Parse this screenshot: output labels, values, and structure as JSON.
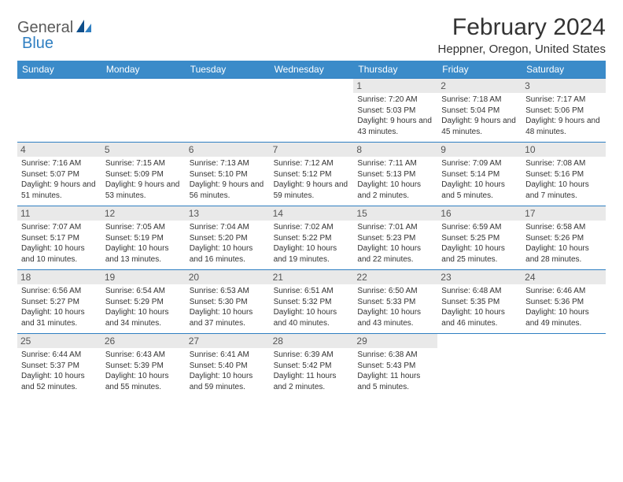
{
  "logo": {
    "part1": "General",
    "part2": "Blue"
  },
  "title": "February 2024",
  "location": "Heppner, Oregon, United States",
  "colors": {
    "header_bg": "#3b8bc9",
    "border": "#2f7fc2",
    "daynum_bg": "#e9e9e9",
    "text": "#333333"
  },
  "weekdays": [
    "Sunday",
    "Monday",
    "Tuesday",
    "Wednesday",
    "Thursday",
    "Friday",
    "Saturday"
  ],
  "weeks": [
    [
      null,
      null,
      null,
      null,
      {
        "n": "1",
        "sr": "7:20 AM",
        "ss": "5:03 PM",
        "dl": "9 hours and 43 minutes."
      },
      {
        "n": "2",
        "sr": "7:18 AM",
        "ss": "5:04 PM",
        "dl": "9 hours and 45 minutes."
      },
      {
        "n": "3",
        "sr": "7:17 AM",
        "ss": "5:06 PM",
        "dl": "9 hours and 48 minutes."
      }
    ],
    [
      {
        "n": "4",
        "sr": "7:16 AM",
        "ss": "5:07 PM",
        "dl": "9 hours and 51 minutes."
      },
      {
        "n": "5",
        "sr": "7:15 AM",
        "ss": "5:09 PM",
        "dl": "9 hours and 53 minutes."
      },
      {
        "n": "6",
        "sr": "7:13 AM",
        "ss": "5:10 PM",
        "dl": "9 hours and 56 minutes."
      },
      {
        "n": "7",
        "sr": "7:12 AM",
        "ss": "5:12 PM",
        "dl": "9 hours and 59 minutes."
      },
      {
        "n": "8",
        "sr": "7:11 AM",
        "ss": "5:13 PM",
        "dl": "10 hours and 2 minutes."
      },
      {
        "n": "9",
        "sr": "7:09 AM",
        "ss": "5:14 PM",
        "dl": "10 hours and 5 minutes."
      },
      {
        "n": "10",
        "sr": "7:08 AM",
        "ss": "5:16 PM",
        "dl": "10 hours and 7 minutes."
      }
    ],
    [
      {
        "n": "11",
        "sr": "7:07 AM",
        "ss": "5:17 PM",
        "dl": "10 hours and 10 minutes."
      },
      {
        "n": "12",
        "sr": "7:05 AM",
        "ss": "5:19 PM",
        "dl": "10 hours and 13 minutes."
      },
      {
        "n": "13",
        "sr": "7:04 AM",
        "ss": "5:20 PM",
        "dl": "10 hours and 16 minutes."
      },
      {
        "n": "14",
        "sr": "7:02 AM",
        "ss": "5:22 PM",
        "dl": "10 hours and 19 minutes."
      },
      {
        "n": "15",
        "sr": "7:01 AM",
        "ss": "5:23 PM",
        "dl": "10 hours and 22 minutes."
      },
      {
        "n": "16",
        "sr": "6:59 AM",
        "ss": "5:25 PM",
        "dl": "10 hours and 25 minutes."
      },
      {
        "n": "17",
        "sr": "6:58 AM",
        "ss": "5:26 PM",
        "dl": "10 hours and 28 minutes."
      }
    ],
    [
      {
        "n": "18",
        "sr": "6:56 AM",
        "ss": "5:27 PM",
        "dl": "10 hours and 31 minutes."
      },
      {
        "n": "19",
        "sr": "6:54 AM",
        "ss": "5:29 PM",
        "dl": "10 hours and 34 minutes."
      },
      {
        "n": "20",
        "sr": "6:53 AM",
        "ss": "5:30 PM",
        "dl": "10 hours and 37 minutes."
      },
      {
        "n": "21",
        "sr": "6:51 AM",
        "ss": "5:32 PM",
        "dl": "10 hours and 40 minutes."
      },
      {
        "n": "22",
        "sr": "6:50 AM",
        "ss": "5:33 PM",
        "dl": "10 hours and 43 minutes."
      },
      {
        "n": "23",
        "sr": "6:48 AM",
        "ss": "5:35 PM",
        "dl": "10 hours and 46 minutes."
      },
      {
        "n": "24",
        "sr": "6:46 AM",
        "ss": "5:36 PM",
        "dl": "10 hours and 49 minutes."
      }
    ],
    [
      {
        "n": "25",
        "sr": "6:44 AM",
        "ss": "5:37 PM",
        "dl": "10 hours and 52 minutes."
      },
      {
        "n": "26",
        "sr": "6:43 AM",
        "ss": "5:39 PM",
        "dl": "10 hours and 55 minutes."
      },
      {
        "n": "27",
        "sr": "6:41 AM",
        "ss": "5:40 PM",
        "dl": "10 hours and 59 minutes."
      },
      {
        "n": "28",
        "sr": "6:39 AM",
        "ss": "5:42 PM",
        "dl": "11 hours and 2 minutes."
      },
      {
        "n": "29",
        "sr": "6:38 AM",
        "ss": "5:43 PM",
        "dl": "11 hours and 5 minutes."
      },
      null,
      null
    ]
  ],
  "labels": {
    "sunrise": "Sunrise:",
    "sunset": "Sunset:",
    "daylight": "Daylight:"
  }
}
